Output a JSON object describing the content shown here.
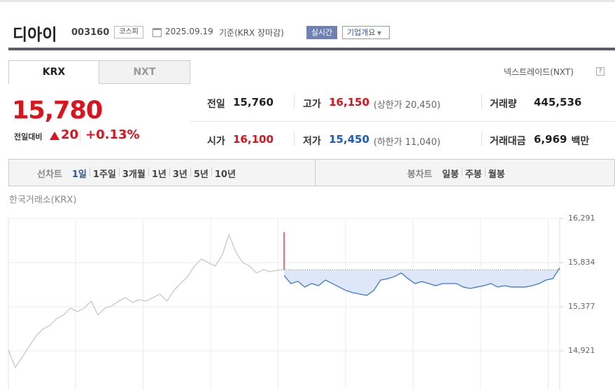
{
  "header": {
    "name": "디아이",
    "code": "003160",
    "market": "코스피",
    "date": "2025.09.19",
    "basis": "기준(KRX 장마감)",
    "realtime": "실시간",
    "overview": "기업개요"
  },
  "tabs": [
    "KRX",
    "NXT"
  ],
  "nxt_link": "넥스트레이드(NXT)",
  "price": {
    "current": "15,780",
    "change_label": "전일대비",
    "change": "20",
    "change_rate": "+0.13%"
  },
  "stats": [
    {
      "label": "전일",
      "value": "15,760"
    },
    {
      "label": "고가",
      "value": "16,150",
      "limit": "(상한가 20,450)"
    },
    {
      "label": "거래량",
      "value": "445,536"
    },
    {
      "label": "시가",
      "value": "16,100"
    },
    {
      "label": "저가",
      "value": "15,450",
      "limit": "(하한가 11,040)"
    },
    {
      "label": "거래대금",
      "value": "6,969",
      "unit": "백만"
    }
  ],
  "periods": {
    "label": "선차트",
    "items": [
      "1일",
      "1주일",
      "3개월",
      "1년",
      "3년",
      "5년",
      "10년"
    ]
  },
  "candles": {
    "label": "봉차트",
    "items": [
      "일봉",
      "주봉",
      "월봉"
    ]
  },
  "chart_data": {
    "type": "line",
    "subtitle": "한국거래소(KRX)",
    "ylim": [
      14515,
      16291
    ],
    "yticks": [
      {
        "value": 16291,
        "label": "16,291"
      },
      {
        "value": 15834,
        "label": "15,834"
      },
      {
        "value": 15377,
        "label": "15,377"
      },
      {
        "value": 14921,
        "label": "14,921"
      }
    ],
    "grid": true,
    "baseline": 15760,
    "series": [
      {
        "color": "#c8c8c8",
        "values": [
          14928,
          14747,
          14855,
          14964,
          15073,
          15145,
          15182,
          15254,
          15291,
          15363,
          15327,
          15363,
          15435,
          15291,
          15363,
          15385,
          15435,
          15472,
          15421,
          15450,
          15435,
          15472,
          15508,
          15435,
          15544,
          15617,
          15689,
          15798,
          15870,
          15834,
          15798,
          15907,
          16124,
          15943,
          15834,
          15798,
          15726,
          15762,
          15740,
          15755,
          15760,
          null,
          null,
          null,
          null,
          null,
          null,
          null,
          null,
          null,
          null,
          null,
          null,
          null,
          null,
          null,
          null,
          null,
          null,
          null,
          null,
          null,
          null,
          null,
          null,
          null,
          null,
          null,
          null,
          null,
          null,
          null,
          null,
          null,
          null,
          null,
          null,
          null,
          null,
          null,
          null
        ]
      },
      {
        "color": "#3d7ad6",
        "area_color": "#dde7f7",
        "values": [
          null,
          null,
          null,
          null,
          null,
          null,
          null,
          null,
          null,
          null,
          null,
          null,
          null,
          null,
          null,
          null,
          null,
          null,
          null,
          null,
          null,
          null,
          null,
          null,
          null,
          null,
          null,
          null,
          null,
          null,
          null,
          null,
          null,
          null,
          null,
          null,
          null,
          null,
          null,
          null,
          15700,
          15617,
          15640,
          15581,
          15617,
          15595,
          15653,
          15617,
          15581,
          15544,
          15522,
          15508,
          15494,
          15544,
          15653,
          15667,
          15689,
          15726,
          15667,
          15617,
          15638,
          15617,
          15595,
          15617,
          15617,
          15617,
          15581,
          15566,
          15581,
          15595,
          15617,
          15581,
          15595,
          15581,
          15581,
          15581,
          15595,
          15617,
          15653,
          15668,
          15780
        ]
      }
    ],
    "spike": {
      "color": "#e8242a",
      "values": [
        16150,
        15760
      ]
    }
  }
}
